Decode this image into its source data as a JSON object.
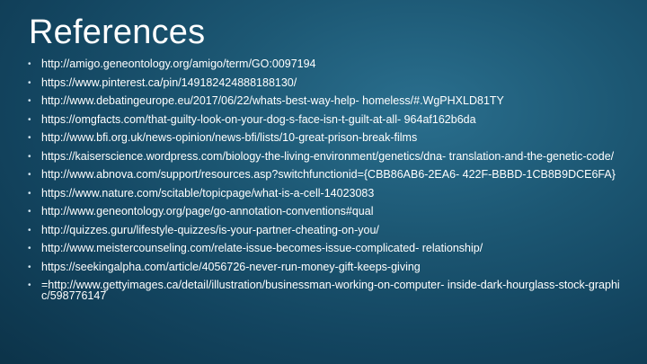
{
  "slide": {
    "title": "References",
    "bullet_symbol": "•",
    "references": [
      "http://amigo.geneontology.org/amigo/term/GO:0097194",
      "https://www.pinterest.ca/pin/149182424888188130/",
      "http://www.debatingeurope.eu/2017/06/22/whats-best-way-help- homeless/#.WgPHXLD81TY",
      "https://omgfacts.com/that-guilty-look-on-your-dog-s-face-isn-t-guilt-at-all- 964af162b6da",
      "http://www.bfi.org.uk/news-opinion/news-bfi/lists/10-great-prison-break-films",
      "https://kaiserscience.wordpress.com/biology-the-living-environment/genetics/dna- translation-and-the-genetic-code/",
      "http://www.abnova.com/support/resources.asp?switchfunctionid={CBB86AB6-2EA6- 422F-BBBD-1CB8B9DCE6FA}",
      "https://www.nature.com/scitable/topicpage/what-is-a-cell-14023083",
      "http://www.geneontology.org/page/go-annotation-conventions#qual",
      "http://quizzes.guru/lifestyle-quizzes/is-your-partner-cheating-on-you/",
      "http://www.meistercounseling.com/relate-issue-becomes-issue-complicated- relationship/",
      "https://seekingalpha.com/article/4056726-never-run-money-gift-keeps-giving",
      "=http://www.gettyimages.ca/detail/illustration/businessman-working-on-computer- inside-dark-hourglass-stock-graphic/598776147"
    ]
  }
}
